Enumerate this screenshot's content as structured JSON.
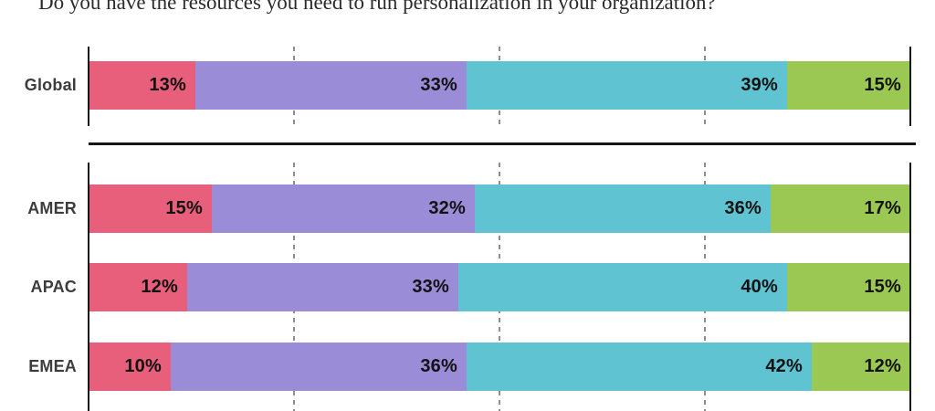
{
  "title": "Do you have the resources you need to run personalization in your organization?",
  "colors": {
    "segment_pink": "#E85F7B",
    "segment_purple": "#9A8CD7",
    "segment_teal": "#5FC3D2",
    "segment_green": "#9BC853",
    "axis_line": "#161616",
    "gridline": "#8D8D8D",
    "row_label_text": "#3C3C3C",
    "value_text": "#121212"
  },
  "chart_data": {
    "type": "bar",
    "orientation": "horizontal",
    "stacked": true,
    "units": "%",
    "axis_range": [
      0,
      100
    ],
    "gridlines_percent": [
      25,
      50,
      75
    ],
    "gridline_style": "dashed-vertical",
    "legend": "none",
    "series_colors": [
      "#E85F7B",
      "#9A8CD7",
      "#5FC3D2",
      "#9BC853"
    ],
    "groups": [
      {
        "name": "global",
        "rows": [
          {
            "label": "Global",
            "values": [
              13,
              33,
              39,
              15
            ]
          }
        ]
      },
      {
        "name": "regions",
        "rows": [
          {
            "label": "AMER",
            "values": [
              15,
              32,
              36,
              17
            ]
          },
          {
            "label": "APAC",
            "values": [
              12,
              33,
              40,
              15
            ]
          },
          {
            "label": "EMEA",
            "values": [
              10,
              36,
              42,
              12
            ]
          }
        ]
      }
    ]
  }
}
